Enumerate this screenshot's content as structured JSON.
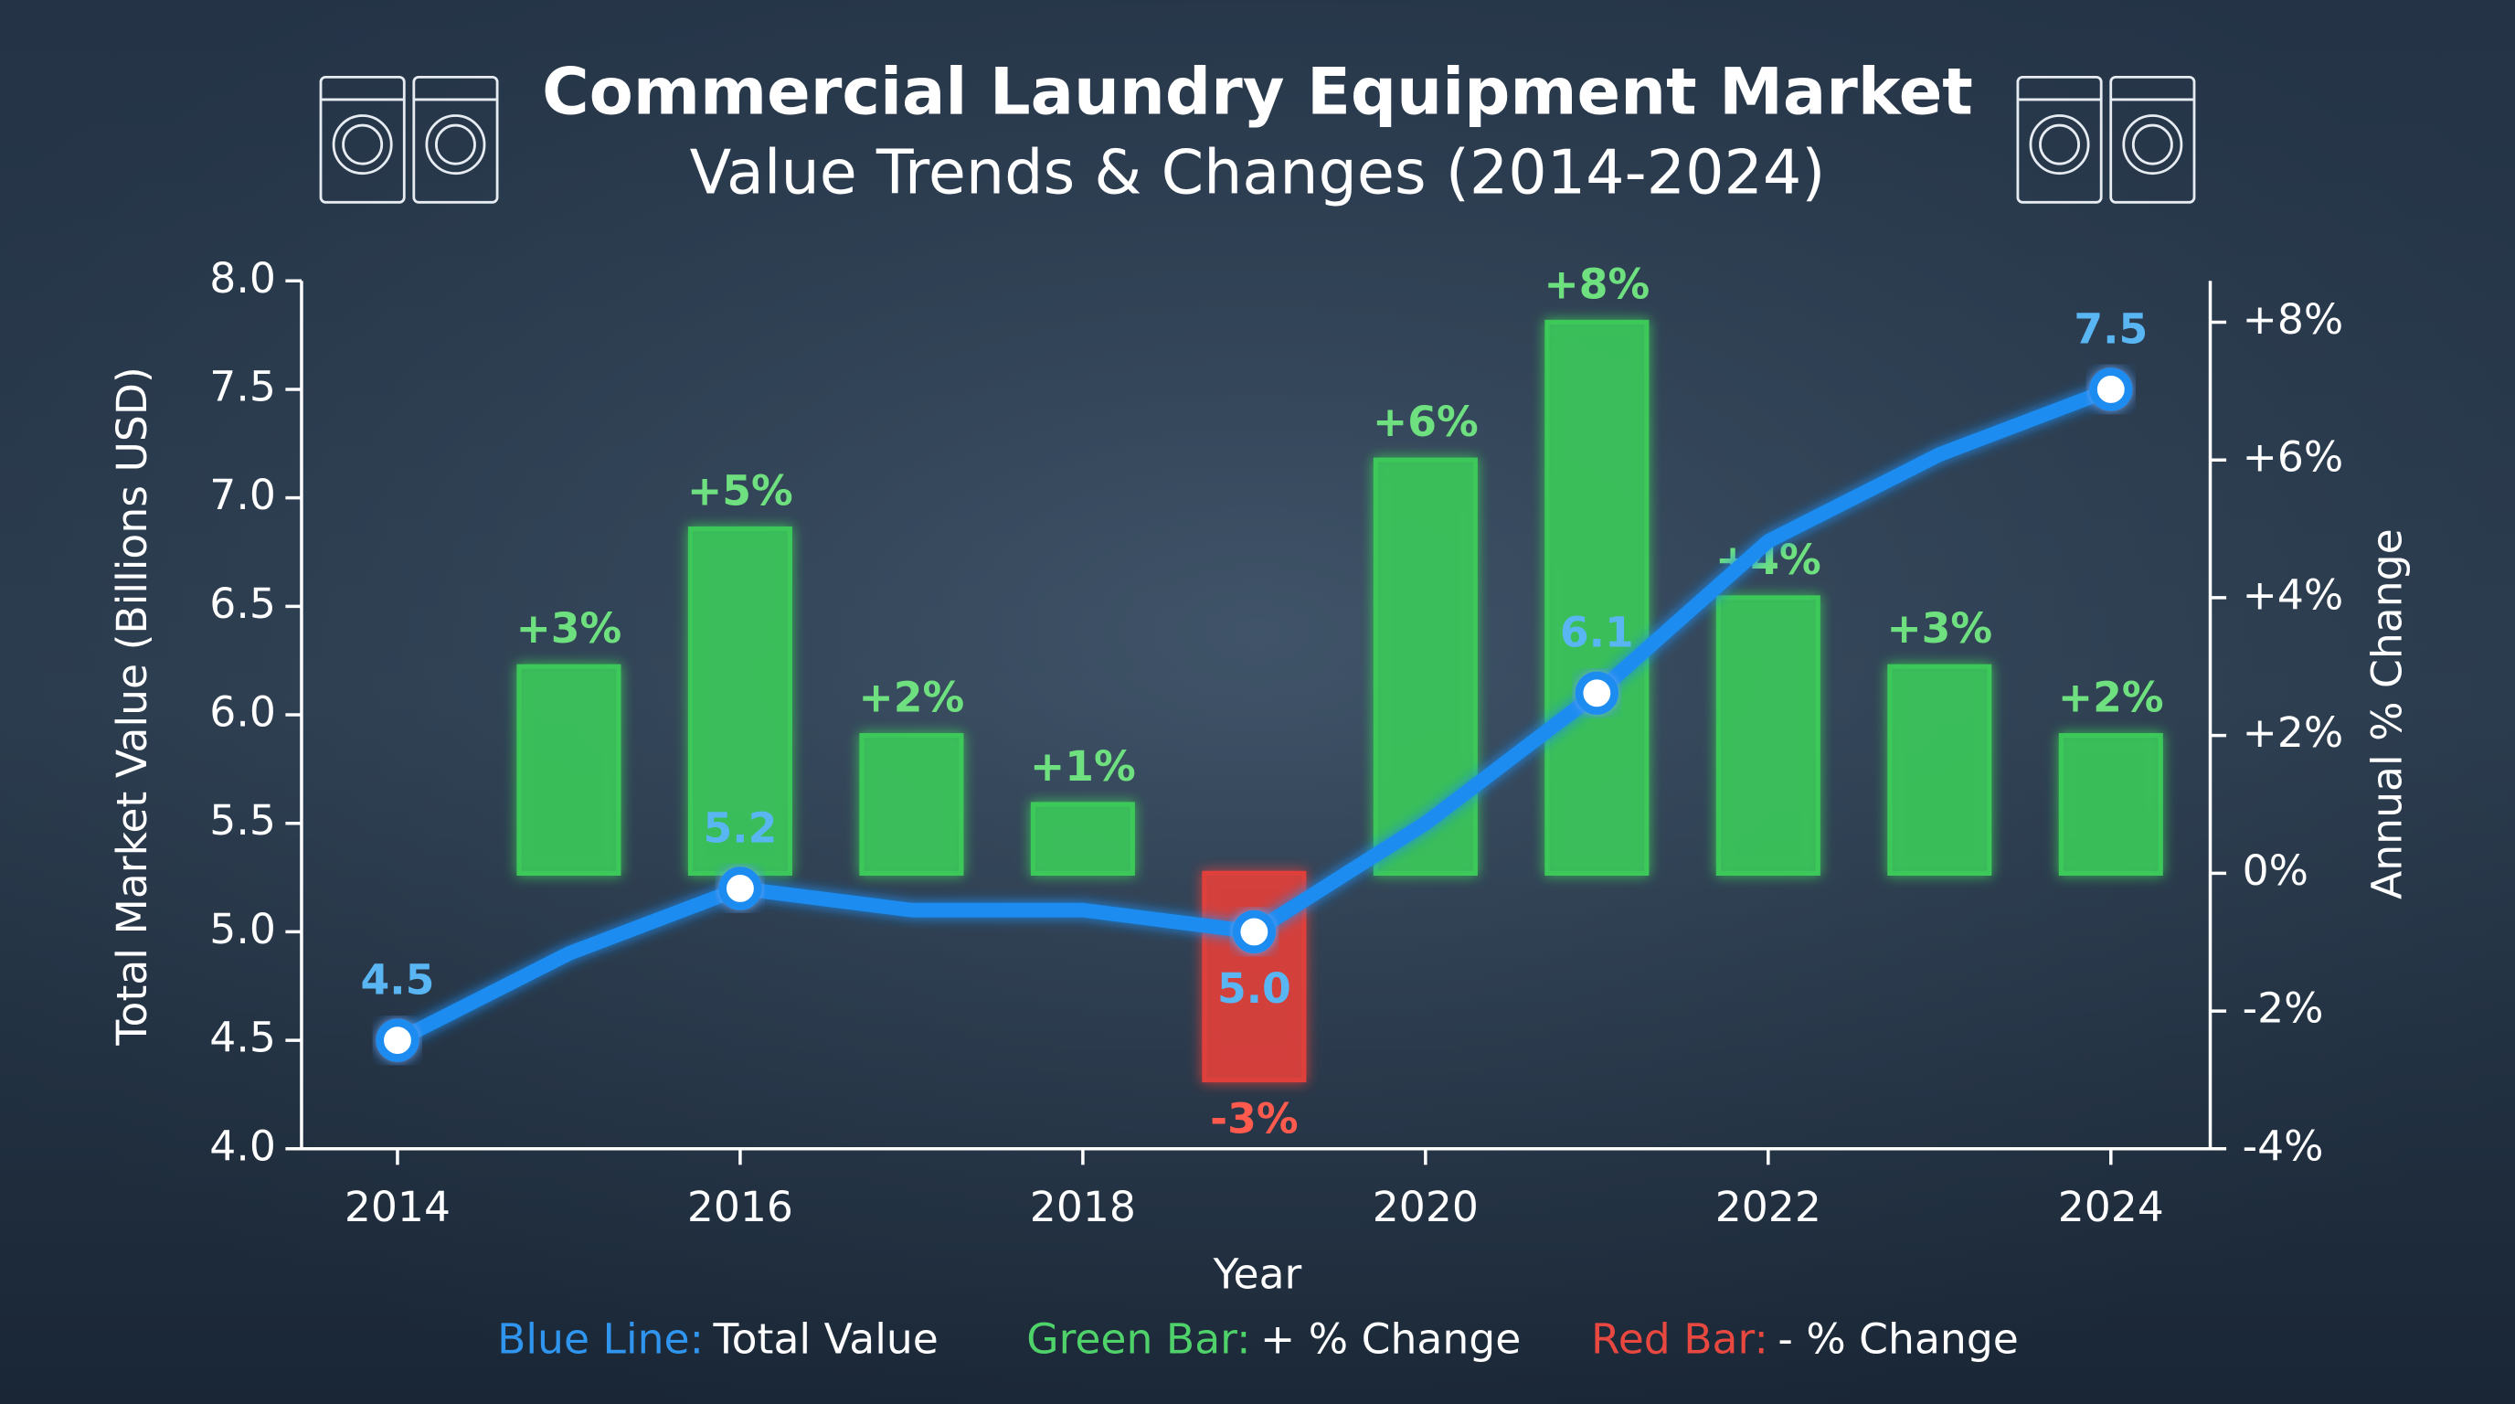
{
  "chart_data": {
    "type": "bar-line",
    "title": "Commercial Laundry Equipment Market",
    "subtitle": "Value Trends & Changes (2014-2024)",
    "xlabel": "Year",
    "ylabel": "Total Market Value (Billions USD)",
    "y2label": "Annual % Change",
    "x": [
      2014,
      2015,
      2016,
      2017,
      2018,
      2019,
      2020,
      2021,
      2022,
      2023,
      2024
    ],
    "xlim": [
      2013.44,
      2024.58
    ],
    "xticks": [
      2014,
      2016,
      2018,
      2020,
      2022,
      2024
    ],
    "ylim": [
      4,
      8
    ],
    "yticks": [
      {
        "value": 4,
        "label": "4.0"
      },
      {
        "value": 4.5,
        "label": "4.5"
      },
      {
        "value": 5,
        "label": "5.0"
      },
      {
        "value": 5.5,
        "label": "5.5"
      },
      {
        "value": 6,
        "label": "6.0"
      },
      {
        "value": 6.5,
        "label": "6.5"
      },
      {
        "value": 7,
        "label": "7.0"
      },
      {
        "value": 7.5,
        "label": "7.5"
      },
      {
        "value": 8,
        "label": "8.0"
      }
    ],
    "y2lim": [
      -4,
      8.6
    ],
    "y2ticks": [
      {
        "value": -4,
        "label": "-4%"
      },
      {
        "value": -2,
        "label": "-2%"
      },
      {
        "value": 0,
        "label": "0%"
      },
      {
        "value": 2,
        "label": "+2%"
      },
      {
        "value": 4,
        "label": "+4%"
      },
      {
        "value": 6,
        "label": "+6%"
      },
      {
        "value": 8,
        "label": "+8%"
      }
    ],
    "series": [
      {
        "type": "line",
        "color": "#1f8cf0",
        "values": [
          4.5,
          4.9,
          5.2,
          5.1,
          5.1,
          5.0,
          5.5,
          6.1,
          6.8,
          7.2,
          7.5
        ],
        "value_labels": [
          "4.5",
          null,
          "5.2",
          null,
          null,
          "5.0",
          null,
          "6.1",
          null,
          null,
          "7.5"
        ]
      },
      {
        "type": "bar",
        "axis": "y2",
        "positive_color": "#3cc85a",
        "negative_color": "#e0403a",
        "values": [
          null,
          3,
          5,
          2,
          1,
          -3,
          6,
          8,
          4,
          3,
          2
        ],
        "value_labels": [
          null,
          "+3%",
          "+5%",
          "+2%",
          "+1%",
          "-3%",
          "+6%",
          "+8%",
          "+4%",
          "+3%",
          "+2%"
        ]
      }
    ],
    "legend": [
      {
        "key": "Blue Line:",
        "label": "Total Value",
        "color": "#2f95ee"
      },
      {
        "key": "Green Bar:",
        "label": "+ % Change",
        "color": "#4fd26a"
      },
      {
        "key": "Red Bar:",
        "label": "- % Change",
        "color": "#e8483f"
      }
    ]
  }
}
